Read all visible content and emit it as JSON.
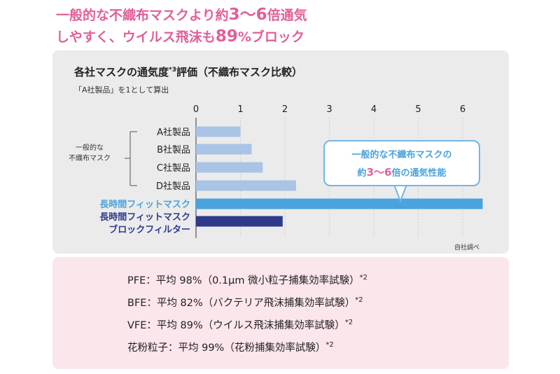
{
  "headline": {
    "line1_pre": "一般的な不織布マスクより約",
    "line1_num": "3〜6",
    "line1_post": "倍通気",
    "line2_pre": "しやすく、ウイルス飛沫も",
    "line2_num": "89",
    "line2_post": "%ブロック"
  },
  "chart_data": {
    "type": "bar",
    "orientation": "horizontal",
    "title": "各社マスクの通気度",
    "title_note": "*3",
    "title_suffix": "評価（不織布マスク比較）",
    "subtitle": "「A社製品」を1として算出",
    "x_ticks": [
      "0",
      "1",
      "2",
      "3",
      "4",
      "5",
      "6"
    ],
    "xlim": [
      0,
      6.5
    ],
    "grid": true,
    "categories": [
      "A社製品",
      "B社製品",
      "C社製品",
      "D社製品",
      "長時間フィットマスク",
      "長時間フィットマスク ブロックフィルター"
    ],
    "category_lines": [
      [
        "A社製品"
      ],
      [
        "B社製品"
      ],
      [
        "C社製品"
      ],
      [
        "D社製品"
      ],
      [
        "長時間フィットマスク"
      ],
      [
        "長時間フィットマスク",
        "ブロックフィルター"
      ]
    ],
    "values": [
      1.0,
      1.25,
      1.5,
      2.25,
      6.45,
      1.95
    ],
    "colors": [
      "#a9c4e4",
      "#a9c4e4",
      "#a9c4e4",
      "#a9c4e4",
      "#4aa3dc",
      "#2d3a8c"
    ],
    "group_label": [
      "一般的な",
      "不織布マスク"
    ],
    "source": "自社調べ"
  },
  "callout": {
    "line1": "一般的な不織布マスクの",
    "line2_pre": "約",
    "line2_num": "3〜6",
    "line2_post": "倍の通気性能"
  },
  "info": [
    {
      "text": "PFE：平均 98%（0.1μm 微小粒子捕集効率試験）",
      "note": "*2"
    },
    {
      "text": "BFE：平均 82%（バクテリア飛沫捕集効率試験）",
      "note": "*2"
    },
    {
      "text": "VFE：平均 89%（ウイルス飛沫捕集効率試験）",
      "note": "*2"
    },
    {
      "text": "花粉粒子：平均 99%（花粉捕集効率試験）",
      "note": "*2"
    }
  ]
}
